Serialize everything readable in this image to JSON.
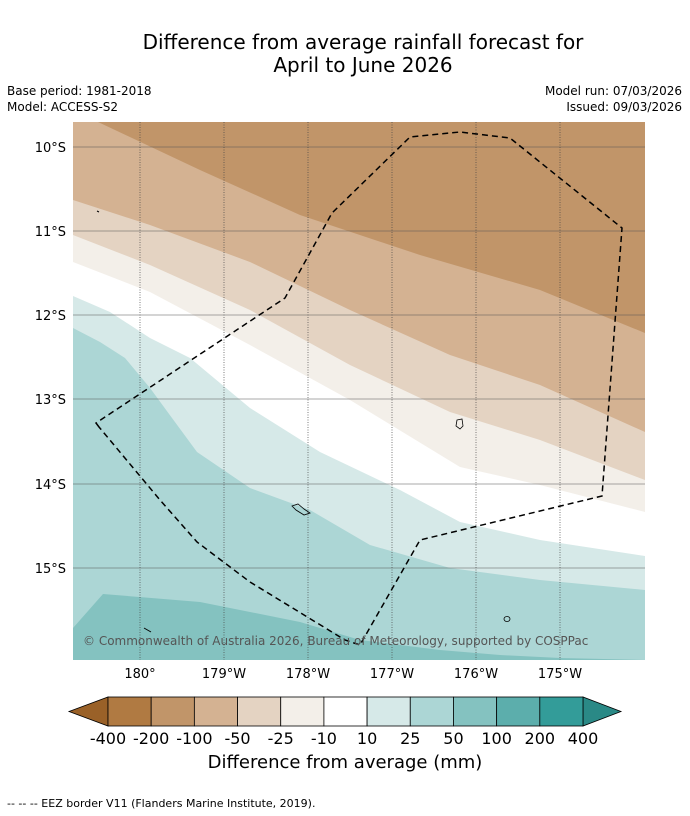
{
  "title_line1": "Difference from average rainfall forecast for",
  "title_line2": "April to June 2026",
  "base_period": "Base period: 1981-2018",
  "model": "Model: ACCESS-S2",
  "model_run": "Model run: 07/03/2026",
  "issued": "Issued: 09/03/2026",
  "lat_labels": [
    "10°S",
    "11°S",
    "12°S",
    "13°S",
    "14°S",
    "15°S"
  ],
  "lon_labels": [
    "180°",
    "179°W",
    "178°W",
    "177°W",
    "176°W",
    "175°W"
  ],
  "copyright": "© Commonwealth of Australia 2026, Bureau of Meteorology, supported by COSPPac",
  "legend": {
    "ticks": [
      "-400",
      "-200",
      "-100",
      "-50",
      "-25",
      "-10",
      "10",
      "25",
      "50",
      "100",
      "200",
      "400"
    ],
    "colors": [
      "#9a6128",
      "#b07a42",
      "#c19569",
      "#d4b292",
      "#e4d3c2",
      "#f3efe9",
      "#ffffff",
      "#d6e9e8",
      "#acd6d5",
      "#84c2c0",
      "#5caeac",
      "#339c99",
      "#2a8986"
    ],
    "label": "Difference from average (mm)"
  },
  "footnote": "--  --  -- EEZ border V11 (Flanders Marine Institute, 2019)."
}
